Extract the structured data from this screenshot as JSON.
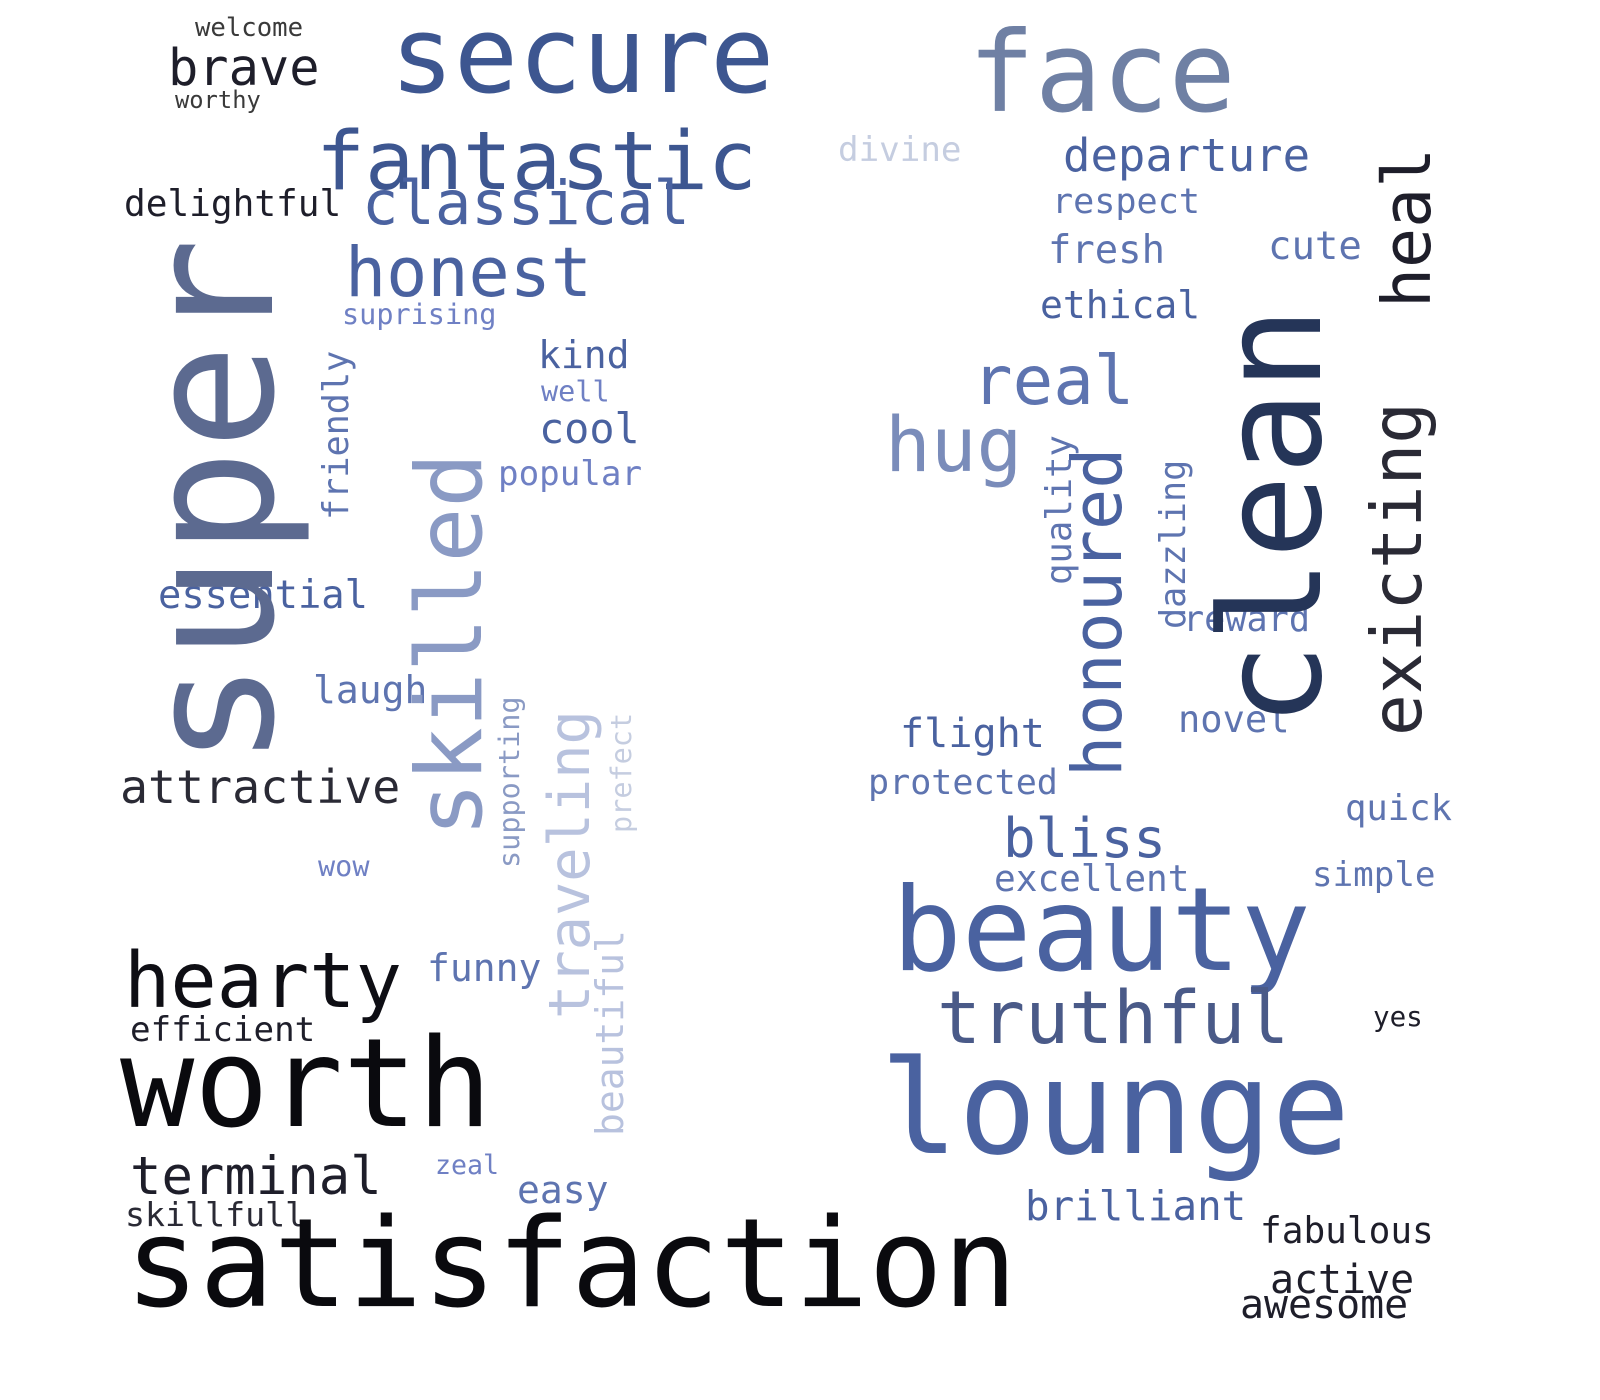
{
  "words": [
    {
      "text": "welcome",
      "color": "#3a3a3a",
      "vertical": false
    },
    {
      "text": "brave",
      "color": "#1e1e2a",
      "vertical": false
    },
    {
      "text": "worthy",
      "color": "#3a3a3a",
      "vertical": false
    },
    {
      "text": "secure",
      "color": "#3d5690",
      "vertical": false
    },
    {
      "text": "face",
      "color": "#6f80a4",
      "vertical": false
    },
    {
      "text": "fantastic",
      "color": "#3d5690",
      "vertical": false
    },
    {
      "text": "divine",
      "color": "#c5cde0",
      "vertical": false
    },
    {
      "text": "departure",
      "color": "#4a62a0",
      "vertical": false
    },
    {
      "text": "delightful",
      "color": "#1e1e2a",
      "vertical": false
    },
    {
      "text": "classical",
      "color": "#4a62a0",
      "vertical": false
    },
    {
      "text": "respect",
      "color": "#5e74b0",
      "vertical": false
    },
    {
      "text": "honest",
      "color": "#4a62a0",
      "vertical": false
    },
    {
      "text": "fresh",
      "color": "#5e74b0",
      "vertical": false
    },
    {
      "text": "cute",
      "color": "#5e74b0",
      "vertical": false
    },
    {
      "text": "ethical",
      "color": "#4a62a0",
      "vertical": false
    },
    {
      "text": "suprising",
      "color": "#6f80c4",
      "vertical": false
    },
    {
      "text": "kind",
      "color": "#4a62a0",
      "vertical": false
    },
    {
      "text": "well",
      "color": "#6f80c4",
      "vertical": false
    },
    {
      "text": "real",
      "color": "#5e74b0",
      "vertical": false
    },
    {
      "text": "cool",
      "color": "#4a62a0",
      "vertical": false
    },
    {
      "text": "hug",
      "color": "#7a8cba",
      "vertical": false
    },
    {
      "text": "popular",
      "color": "#6f80c4",
      "vertical": false
    },
    {
      "text": "essential",
      "color": "#4a62a0",
      "vertical": false
    },
    {
      "text": "reward",
      "color": "#5e74b0",
      "vertical": false
    },
    {
      "text": "laugh",
      "color": "#5e74b0",
      "vertical": false
    },
    {
      "text": "novel",
      "color": "#5e74b0",
      "vertical": false
    },
    {
      "text": "flight",
      "color": "#4a62a0",
      "vertical": false
    },
    {
      "text": "attractive",
      "color": "#2a2a35",
      "vertical": false
    },
    {
      "text": "protected",
      "color": "#5e74b0",
      "vertical": false
    },
    {
      "text": "quick",
      "color": "#5e74b0",
      "vertical": false
    },
    {
      "text": "bliss",
      "color": "#4a62a0",
      "vertical": false
    },
    {
      "text": "wow",
      "color": "#6f80c4",
      "vertical": false
    },
    {
      "text": "excellent",
      "color": "#5e74b0",
      "vertical": false
    },
    {
      "text": "simple",
      "color": "#5e74b0",
      "vertical": false
    },
    {
      "text": "beauty",
      "color": "#4a62a0",
      "vertical": false
    },
    {
      "text": "hearty",
      "color": "#0e0e14",
      "vertical": false
    },
    {
      "text": "funny",
      "color": "#5e74b0",
      "vertical": false
    },
    {
      "text": "truthful",
      "color": "#4a5a88",
      "vertical": false
    },
    {
      "text": "efficient",
      "color": "#1e1e2a",
      "vertical": false
    },
    {
      "text": "yes",
      "color": "#1e1e2a",
      "vertical": false
    },
    {
      "text": "worth",
      "color": "#0a0a0e",
      "vertical": false
    },
    {
      "text": "lounge",
      "color": "#4a62a0",
      "vertical": false
    },
    {
      "text": "terminal",
      "color": "#1e1e2a",
      "vertical": false
    },
    {
      "text": "zeal",
      "color": "#6f80c4",
      "vertical": false
    },
    {
      "text": "easy",
      "color": "#5e74b0",
      "vertical": false
    },
    {
      "text": "brilliant",
      "color": "#4a62a0",
      "vertical": false
    },
    {
      "text": "skillfull",
      "color": "#2a2a35",
      "vertical": false
    },
    {
      "text": "fabulous",
      "color": "#1e1e2a",
      "vertical": false
    },
    {
      "text": "satisfaction",
      "color": "#0a0a0e",
      "vertical": false
    },
    {
      "text": "active",
      "color": "#1e1e2a",
      "vertical": false
    },
    {
      "text": "awesome",
      "color": "#1e1e2a",
      "vertical": false
    },
    {
      "text": "super",
      "color": "#5c6a90",
      "vertical": true
    },
    {
      "text": "skilled",
      "color": "#8a9ac4",
      "vertical": true
    },
    {
      "text": "friendly",
      "color": "#5e74b0",
      "vertical": true
    },
    {
      "text": "traveling",
      "color": "#b8c2de",
      "vertical": true
    },
    {
      "text": "supporting",
      "color": "#8a9ac4",
      "vertical": true
    },
    {
      "text": "prefect",
      "color": "#c5cde0",
      "vertical": true
    },
    {
      "text": "beautiful",
      "color": "#b8c2de",
      "vertical": true
    },
    {
      "text": "clean",
      "color": "#253558",
      "vertical": true
    },
    {
      "text": "heal",
      "color": "#1e1e2a",
      "vertical": true
    },
    {
      "text": "exicting",
      "color": "#2a2a35",
      "vertical": true
    },
    {
      "text": "honoured",
      "color": "#4a62a0",
      "vertical": true
    },
    {
      "text": "quality",
      "color": "#5e74b0",
      "vertical": true
    },
    {
      "text": "dazzling",
      "color": "#5e74b0",
      "vertical": true
    }
  ]
}
